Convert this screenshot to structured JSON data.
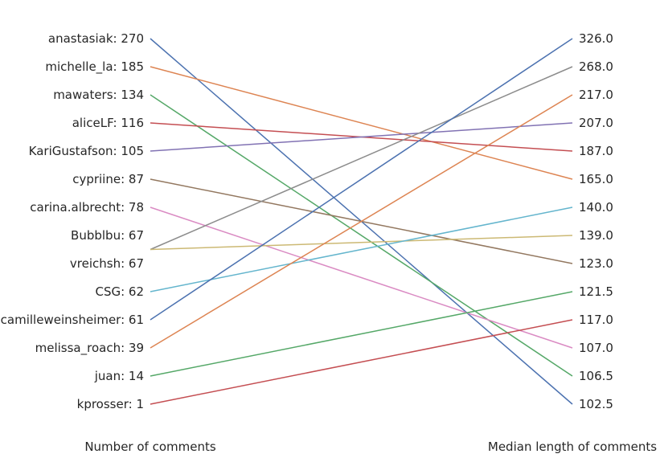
{
  "chart_data": {
    "type": "line",
    "xlabel_left": "Number of comments",
    "xlabel_right": "Median length of comments",
    "users": [
      {
        "name": "anastasiak",
        "comments": 270,
        "median_length": 102.5,
        "color": "#4c72b0"
      },
      {
        "name": "michelle_la",
        "comments": 185,
        "median_length": 165.0,
        "color": "#dd8452"
      },
      {
        "name": "mawaters",
        "comments": 134,
        "median_length": 106.5,
        "color": "#55a868"
      },
      {
        "name": "aliceLF",
        "comments": 116,
        "median_length": 187.0,
        "color": "#c44e52"
      },
      {
        "name": "KariGustafson",
        "comments": 105,
        "median_length": 207.0,
        "color": "#8172b3"
      },
      {
        "name": "cypriine",
        "comments": 87,
        "median_length": 123.0,
        "color": "#937860"
      },
      {
        "name": "carina.albrecht",
        "comments": 78,
        "median_length": 107.0,
        "color": "#da8bc3"
      },
      {
        "name": "Bubblbu",
        "comments": 67,
        "median_length": 268.0,
        "color": "#8c8c8c"
      },
      {
        "name": "vreichsh",
        "comments": 67,
        "median_length": 139.0,
        "color": "#ccb974"
      },
      {
        "name": "CSG",
        "comments": 62,
        "median_length": 140.0,
        "color": "#64b5cd"
      },
      {
        "name": "camilleweinsheimer",
        "comments": 61,
        "median_length": 326.0,
        "color": "#4c72b0"
      },
      {
        "name": "melissa_roach",
        "comments": 39,
        "median_length": 217.0,
        "color": "#dd8452"
      },
      {
        "name": "juan",
        "comments": 14,
        "median_length": 121.5,
        "color": "#55a868"
      },
      {
        "name": "kprosser",
        "comments": 1,
        "median_length": 117.0,
        "color": "#c44e52"
      }
    ],
    "left_labels": [
      "anastasiak: 270",
      "michelle_la: 185",
      "mawaters: 134",
      "aliceLF: 116",
      "KariGustafson: 105",
      "cypriine: 87",
      "carina.albrecht: 78",
      "Bubblbu: 67",
      "vreichsh: 67",
      "CSG: 62",
      "camilleweinsheimer: 61",
      "melissa_roach: 39",
      "juan: 14",
      "kprosser: 1"
    ],
    "right_labels": [
      "326.0",
      "268.0",
      "217.0",
      "207.0",
      "187.0",
      "165.0",
      "140.0",
      "139.0",
      "123.0",
      "121.5",
      "117.0",
      "107.0",
      "106.5",
      "102.5"
    ]
  }
}
